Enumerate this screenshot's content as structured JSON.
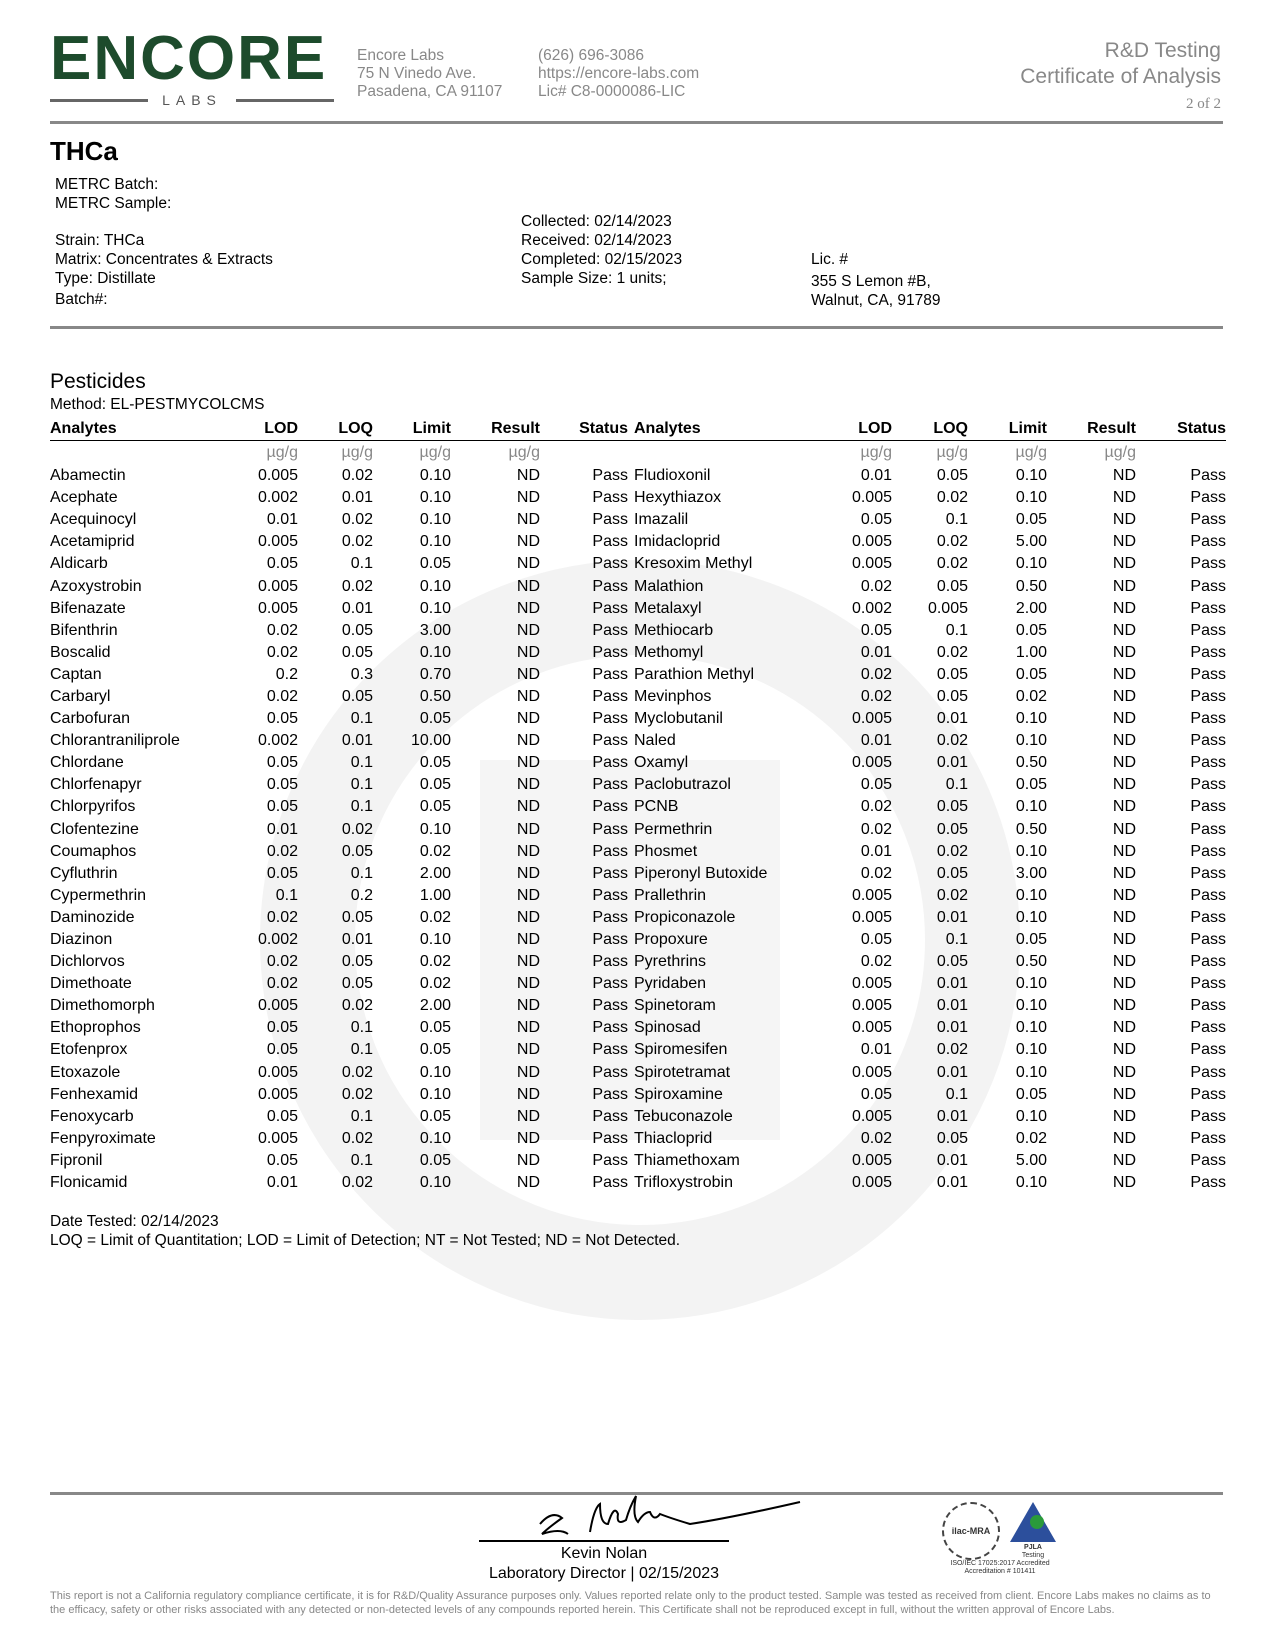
{
  "header": {
    "logo_text": "ENCORE",
    "logo_sub": "LABS",
    "lab_name": "Encore Labs",
    "lab_street": "75 N Vinedo Ave.",
    "lab_city": "Pasadena, CA 91107",
    "phone": "(626) 696-3086",
    "website": "https://encore-labs.com",
    "license": "Lic# C8-0000086-LIC",
    "doc_type_1": "R&D Testing",
    "doc_type_2": "Certificate of Analysis",
    "page": "2 of 2",
    "brand_color": "#1d4b2c"
  },
  "sample": {
    "title": "THCa",
    "metrc_batch": "METRC Batch:",
    "metrc_sample": "METRC Sample:",
    "strain": "Strain: THCa",
    "matrix": "Matrix: Concentrates & Extracts",
    "type": "Type: Distillate",
    "batch": "Batch#:",
    "collected": "Collected: 02/14/2023",
    "received": "Received: 02/14/2023",
    "completed": "Completed: 02/15/2023",
    "sample_size": "Sample Size: 1 units;",
    "client_lic": "Lic. #",
    "client_addr1": "355 S Lemon #B,",
    "client_addr2": "Walnut, CA, 91789"
  },
  "pesticides": {
    "title": "Pesticides",
    "method": "Method: EL-PESTMYCOLCMS",
    "columns": [
      "Analytes",
      "LOD",
      "LOQ",
      "Limit",
      "Result",
      "Status"
    ],
    "unit": "µg/g",
    "left": [
      [
        "Abamectin",
        "0.005",
        "0.02",
        "0.10",
        "ND",
        "Pass"
      ],
      [
        "Acephate",
        "0.002",
        "0.01",
        "0.10",
        "ND",
        "Pass"
      ],
      [
        "Acequinocyl",
        "0.01",
        "0.02",
        "0.10",
        "ND",
        "Pass"
      ],
      [
        "Acetamiprid",
        "0.005",
        "0.02",
        "0.10",
        "ND",
        "Pass"
      ],
      [
        "Aldicarb",
        "0.05",
        "0.1",
        "0.05",
        "ND",
        "Pass"
      ],
      [
        "Azoxystrobin",
        "0.005",
        "0.02",
        "0.10",
        "ND",
        "Pass"
      ],
      [
        "Bifenazate",
        "0.005",
        "0.01",
        "0.10",
        "ND",
        "Pass"
      ],
      [
        "Bifenthrin",
        "0.02",
        "0.05",
        "3.00",
        "ND",
        "Pass"
      ],
      [
        "Boscalid",
        "0.02",
        "0.05",
        "0.10",
        "ND",
        "Pass"
      ],
      [
        "Captan",
        "0.2",
        "0.3",
        "0.70",
        "ND",
        "Pass"
      ],
      [
        "Carbaryl",
        "0.02",
        "0.05",
        "0.50",
        "ND",
        "Pass"
      ],
      [
        "Carbofuran",
        "0.05",
        "0.1",
        "0.05",
        "ND",
        "Pass"
      ],
      [
        "Chlorantraniliprole",
        "0.002",
        "0.01",
        "10.00",
        "ND",
        "Pass"
      ],
      [
        "Chlordane",
        "0.05",
        "0.1",
        "0.05",
        "ND",
        "Pass"
      ],
      [
        "Chlorfenapyr",
        "0.05",
        "0.1",
        "0.05",
        "ND",
        "Pass"
      ],
      [
        "Chlorpyrifos",
        "0.05",
        "0.1",
        "0.05",
        "ND",
        "Pass"
      ],
      [
        "Clofentezine",
        "0.01",
        "0.02",
        "0.10",
        "ND",
        "Pass"
      ],
      [
        "Coumaphos",
        "0.02",
        "0.05",
        "0.02",
        "ND",
        "Pass"
      ],
      [
        "Cyfluthrin",
        "0.05",
        "0.1",
        "2.00",
        "ND",
        "Pass"
      ],
      [
        "Cypermethrin",
        "0.1",
        "0.2",
        "1.00",
        "ND",
        "Pass"
      ],
      [
        "Daminozide",
        "0.02",
        "0.05",
        "0.02",
        "ND",
        "Pass"
      ],
      [
        "Diazinon",
        "0.002",
        "0.01",
        "0.10",
        "ND",
        "Pass"
      ],
      [
        "Dichlorvos",
        "0.02",
        "0.05",
        "0.02",
        "ND",
        "Pass"
      ],
      [
        "Dimethoate",
        "0.02",
        "0.05",
        "0.02",
        "ND",
        "Pass"
      ],
      [
        "Dimethomorph",
        "0.005",
        "0.02",
        "2.00",
        "ND",
        "Pass"
      ],
      [
        "Ethoprophos",
        "0.05",
        "0.1",
        "0.05",
        "ND",
        "Pass"
      ],
      [
        "Etofenprox",
        "0.05",
        "0.1",
        "0.05",
        "ND",
        "Pass"
      ],
      [
        "Etoxazole",
        "0.005",
        "0.02",
        "0.10",
        "ND",
        "Pass"
      ],
      [
        "Fenhexamid",
        "0.005",
        "0.02",
        "0.10",
        "ND",
        "Pass"
      ],
      [
        "Fenoxycarb",
        "0.05",
        "0.1",
        "0.05",
        "ND",
        "Pass"
      ],
      [
        "Fenpyroximate",
        "0.005",
        "0.02",
        "0.10",
        "ND",
        "Pass"
      ],
      [
        "Fipronil",
        "0.05",
        "0.1",
        "0.05",
        "ND",
        "Pass"
      ],
      [
        "Flonicamid",
        "0.01",
        "0.02",
        "0.10",
        "ND",
        "Pass"
      ]
    ],
    "right": [
      [
        "Fludioxonil",
        "0.01",
        "0.05",
        "0.10",
        "ND",
        "Pass"
      ],
      [
        "Hexythiazox",
        "0.005",
        "0.02",
        "0.10",
        "ND",
        "Pass"
      ],
      [
        "Imazalil",
        "0.05",
        "0.1",
        "0.05",
        "ND",
        "Pass"
      ],
      [
        "Imidacloprid",
        "0.005",
        "0.02",
        "5.00",
        "ND",
        "Pass"
      ],
      [
        "Kresoxim Methyl",
        "0.005",
        "0.02",
        "0.10",
        "ND",
        "Pass"
      ],
      [
        "Malathion",
        "0.02",
        "0.05",
        "0.50",
        "ND",
        "Pass"
      ],
      [
        "Metalaxyl",
        "0.002",
        "0.005",
        "2.00",
        "ND",
        "Pass"
      ],
      [
        "Methiocarb",
        "0.05",
        "0.1",
        "0.05",
        "ND",
        "Pass"
      ],
      [
        "Methomyl",
        "0.01",
        "0.02",
        "1.00",
        "ND",
        "Pass"
      ],
      [
        "Parathion Methyl",
        "0.02",
        "0.05",
        "0.05",
        "ND",
        "Pass"
      ],
      [
        "Mevinphos",
        "0.02",
        "0.05",
        "0.02",
        "ND",
        "Pass"
      ],
      [
        "Myclobutanil",
        "0.005",
        "0.01",
        "0.10",
        "ND",
        "Pass"
      ],
      [
        "Naled",
        "0.01",
        "0.02",
        "0.10",
        "ND",
        "Pass"
      ],
      [
        "Oxamyl",
        "0.005",
        "0.01",
        "0.50",
        "ND",
        "Pass"
      ],
      [
        "Paclobutrazol",
        "0.05",
        "0.1",
        "0.05",
        "ND",
        "Pass"
      ],
      [
        "PCNB",
        "0.02",
        "0.05",
        "0.10",
        "ND",
        "Pass"
      ],
      [
        "Permethrin",
        "0.02",
        "0.05",
        "0.50",
        "ND",
        "Pass"
      ],
      [
        "Phosmet",
        "0.01",
        "0.02",
        "0.10",
        "ND",
        "Pass"
      ],
      [
        "Piperonyl Butoxide",
        "0.02",
        "0.05",
        "3.00",
        "ND",
        "Pass"
      ],
      [
        "Prallethrin",
        "0.005",
        "0.02",
        "0.10",
        "ND",
        "Pass"
      ],
      [
        "Propiconazole",
        "0.005",
        "0.01",
        "0.10",
        "ND",
        "Pass"
      ],
      [
        "Propoxure",
        "0.05",
        "0.1",
        "0.05",
        "ND",
        "Pass"
      ],
      [
        "Pyrethrins",
        "0.02",
        "0.05",
        "0.50",
        "ND",
        "Pass"
      ],
      [
        "Pyridaben",
        "0.005",
        "0.01",
        "0.10",
        "ND",
        "Pass"
      ],
      [
        "Spinetoram",
        "0.005",
        "0.01",
        "0.10",
        "ND",
        "Pass"
      ],
      [
        "Spinosad",
        "0.005",
        "0.01",
        "0.10",
        "ND",
        "Pass"
      ],
      [
        "Spiromesifen",
        "0.01",
        "0.02",
        "0.10",
        "ND",
        "Pass"
      ],
      [
        "Spirotetramat",
        "0.005",
        "0.01",
        "0.10",
        "ND",
        "Pass"
      ],
      [
        "Spiroxamine",
        "0.05",
        "0.1",
        "0.05",
        "ND",
        "Pass"
      ],
      [
        "Tebuconazole",
        "0.005",
        "0.01",
        "0.10",
        "ND",
        "Pass"
      ],
      [
        "Thiacloprid",
        "0.02",
        "0.05",
        "0.02",
        "ND",
        "Pass"
      ],
      [
        "Thiamethoxam",
        "0.005",
        "0.01",
        "5.00",
        "ND",
        "Pass"
      ],
      [
        "Trifloxystrobin",
        "0.005",
        "0.01",
        "0.10",
        "ND",
        "Pass"
      ]
    ],
    "date_tested": "Date Tested: 02/14/2023",
    "legend": "LOQ = Limit of Quantitation; LOD = Limit of Detection; NT = Not Tested; ND = Not Detected."
  },
  "signature": {
    "name": "Kevin Nolan",
    "title": "Laboratory Director | 02/15/2023"
  },
  "accreditation": {
    "ilac": "ilac-MRA",
    "pjla": "PJLA",
    "pjla_sub": "Testing",
    "iso": "ISO/IEC 17025:2017 Accredited",
    "number": "Accreditation # 101411"
  },
  "disclaimer": "This report is not a California regulatory compliance certificate, it is for R&D/Quality Assurance purposes only. Values reported relate only to the product tested. Sample was tested as received from client. Encore Labs makes no claims as to the efficacy, safety or other risks associated with any detected or non-detected levels of any compounds reported herein. This Certificate shall not be reproduced except in full, without the written approval of Encore Labs."
}
